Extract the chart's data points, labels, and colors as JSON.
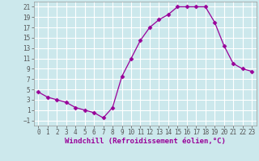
{
  "x": [
    0,
    1,
    2,
    3,
    4,
    5,
    6,
    7,
    8,
    9,
    10,
    11,
    12,
    13,
    14,
    15,
    16,
    17,
    18,
    19,
    20,
    21,
    22,
    23
  ],
  "y": [
    4.5,
    3.5,
    3.0,
    2.5,
    1.5,
    1.0,
    0.5,
    -0.5,
    1.5,
    7.5,
    11.0,
    14.5,
    17.0,
    18.5,
    19.5,
    21.0,
    21.0,
    21.0,
    21.0,
    18.0,
    13.5,
    10.0,
    9.0,
    8.5
  ],
  "xlabel": "Windchill (Refroidissement éolien,°C)",
  "xlim": [
    -0.5,
    23.5
  ],
  "ylim": [
    -2,
    22
  ],
  "yticks": [
    -1,
    1,
    3,
    5,
    7,
    9,
    11,
    13,
    15,
    17,
    19,
    21
  ],
  "xticks": [
    0,
    1,
    2,
    3,
    4,
    5,
    6,
    7,
    8,
    9,
    10,
    11,
    12,
    13,
    14,
    15,
    16,
    17,
    18,
    19,
    20,
    21,
    22,
    23
  ],
  "line_color": "#990099",
  "marker": "D",
  "marker_size": 2.5,
  "background_color": "#cce8ec",
  "grid_color": "#ffffff",
  "font_family": "monospace",
  "xlabel_fontsize": 6.5,
  "tick_fontsize": 5.5
}
